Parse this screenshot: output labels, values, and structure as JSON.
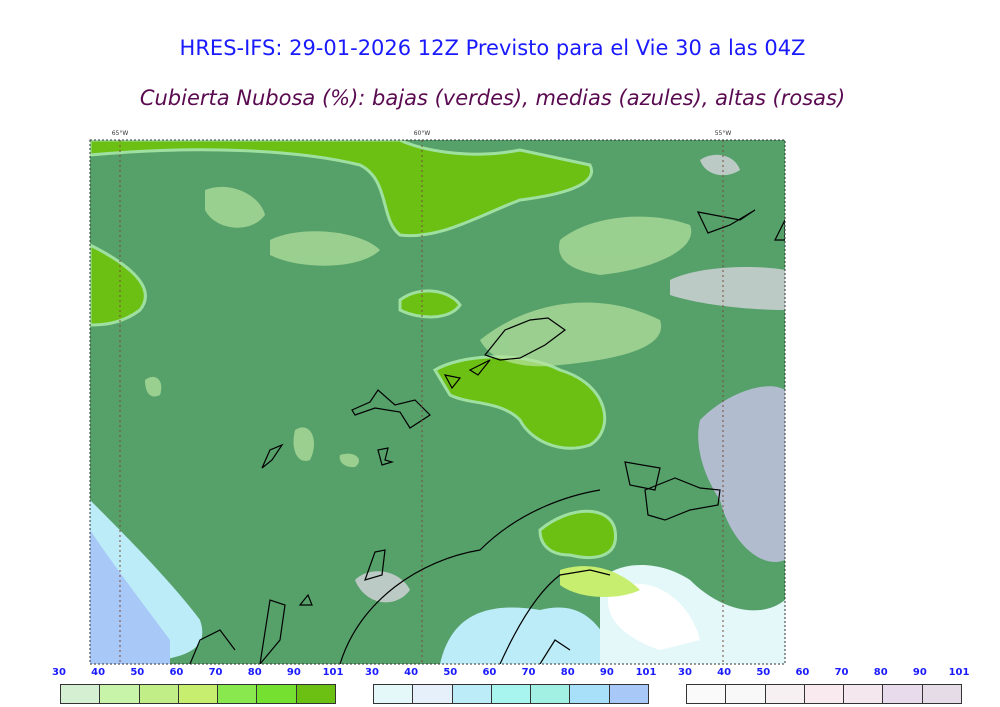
{
  "title": "HRES-IFS: 29-01-2026 12Z Previsto para el Vie 30 a las 04Z",
  "subtitle": "Cubierta Nubosa (%): bajas (verdes), medias (azules), altas (rosas)",
  "map": {
    "longitude_labels": [
      "65°W",
      "60°W",
      "55°W"
    ],
    "background_color": "#56a06a",
    "coastline_color": "#000000"
  },
  "colorbars": [
    {
      "name": "bajas",
      "ticks": [
        "30",
        "40",
        "50",
        "60",
        "70",
        "80",
        "90",
        "101"
      ],
      "colors": [
        "#d4efd2",
        "#c8f4aa",
        "#c2ee88",
        "#c8ee70",
        "#88e84e",
        "#76e030",
        "#6cc014"
      ]
    },
    {
      "name": "medias",
      "ticks": [
        "30",
        "40",
        "50",
        "60",
        "70",
        "80",
        "90",
        "101"
      ],
      "colors": [
        "#e4f8fa",
        "#e6f0fa",
        "#bcecf8",
        "#a8f4ee",
        "#a2f0e4",
        "#a8e0fa",
        "#a8c8f8"
      ]
    },
    {
      "name": "altas",
      "ticks": [
        "30",
        "40",
        "50",
        "60",
        "70",
        "80",
        "90",
        "101"
      ],
      "colors": [
        "#fafafa",
        "#f8f8f8",
        "#f6f0f2",
        "#f8eaee",
        "#f4e8ee",
        "#e8dcec",
        "#e6dce8"
      ]
    }
  ]
}
